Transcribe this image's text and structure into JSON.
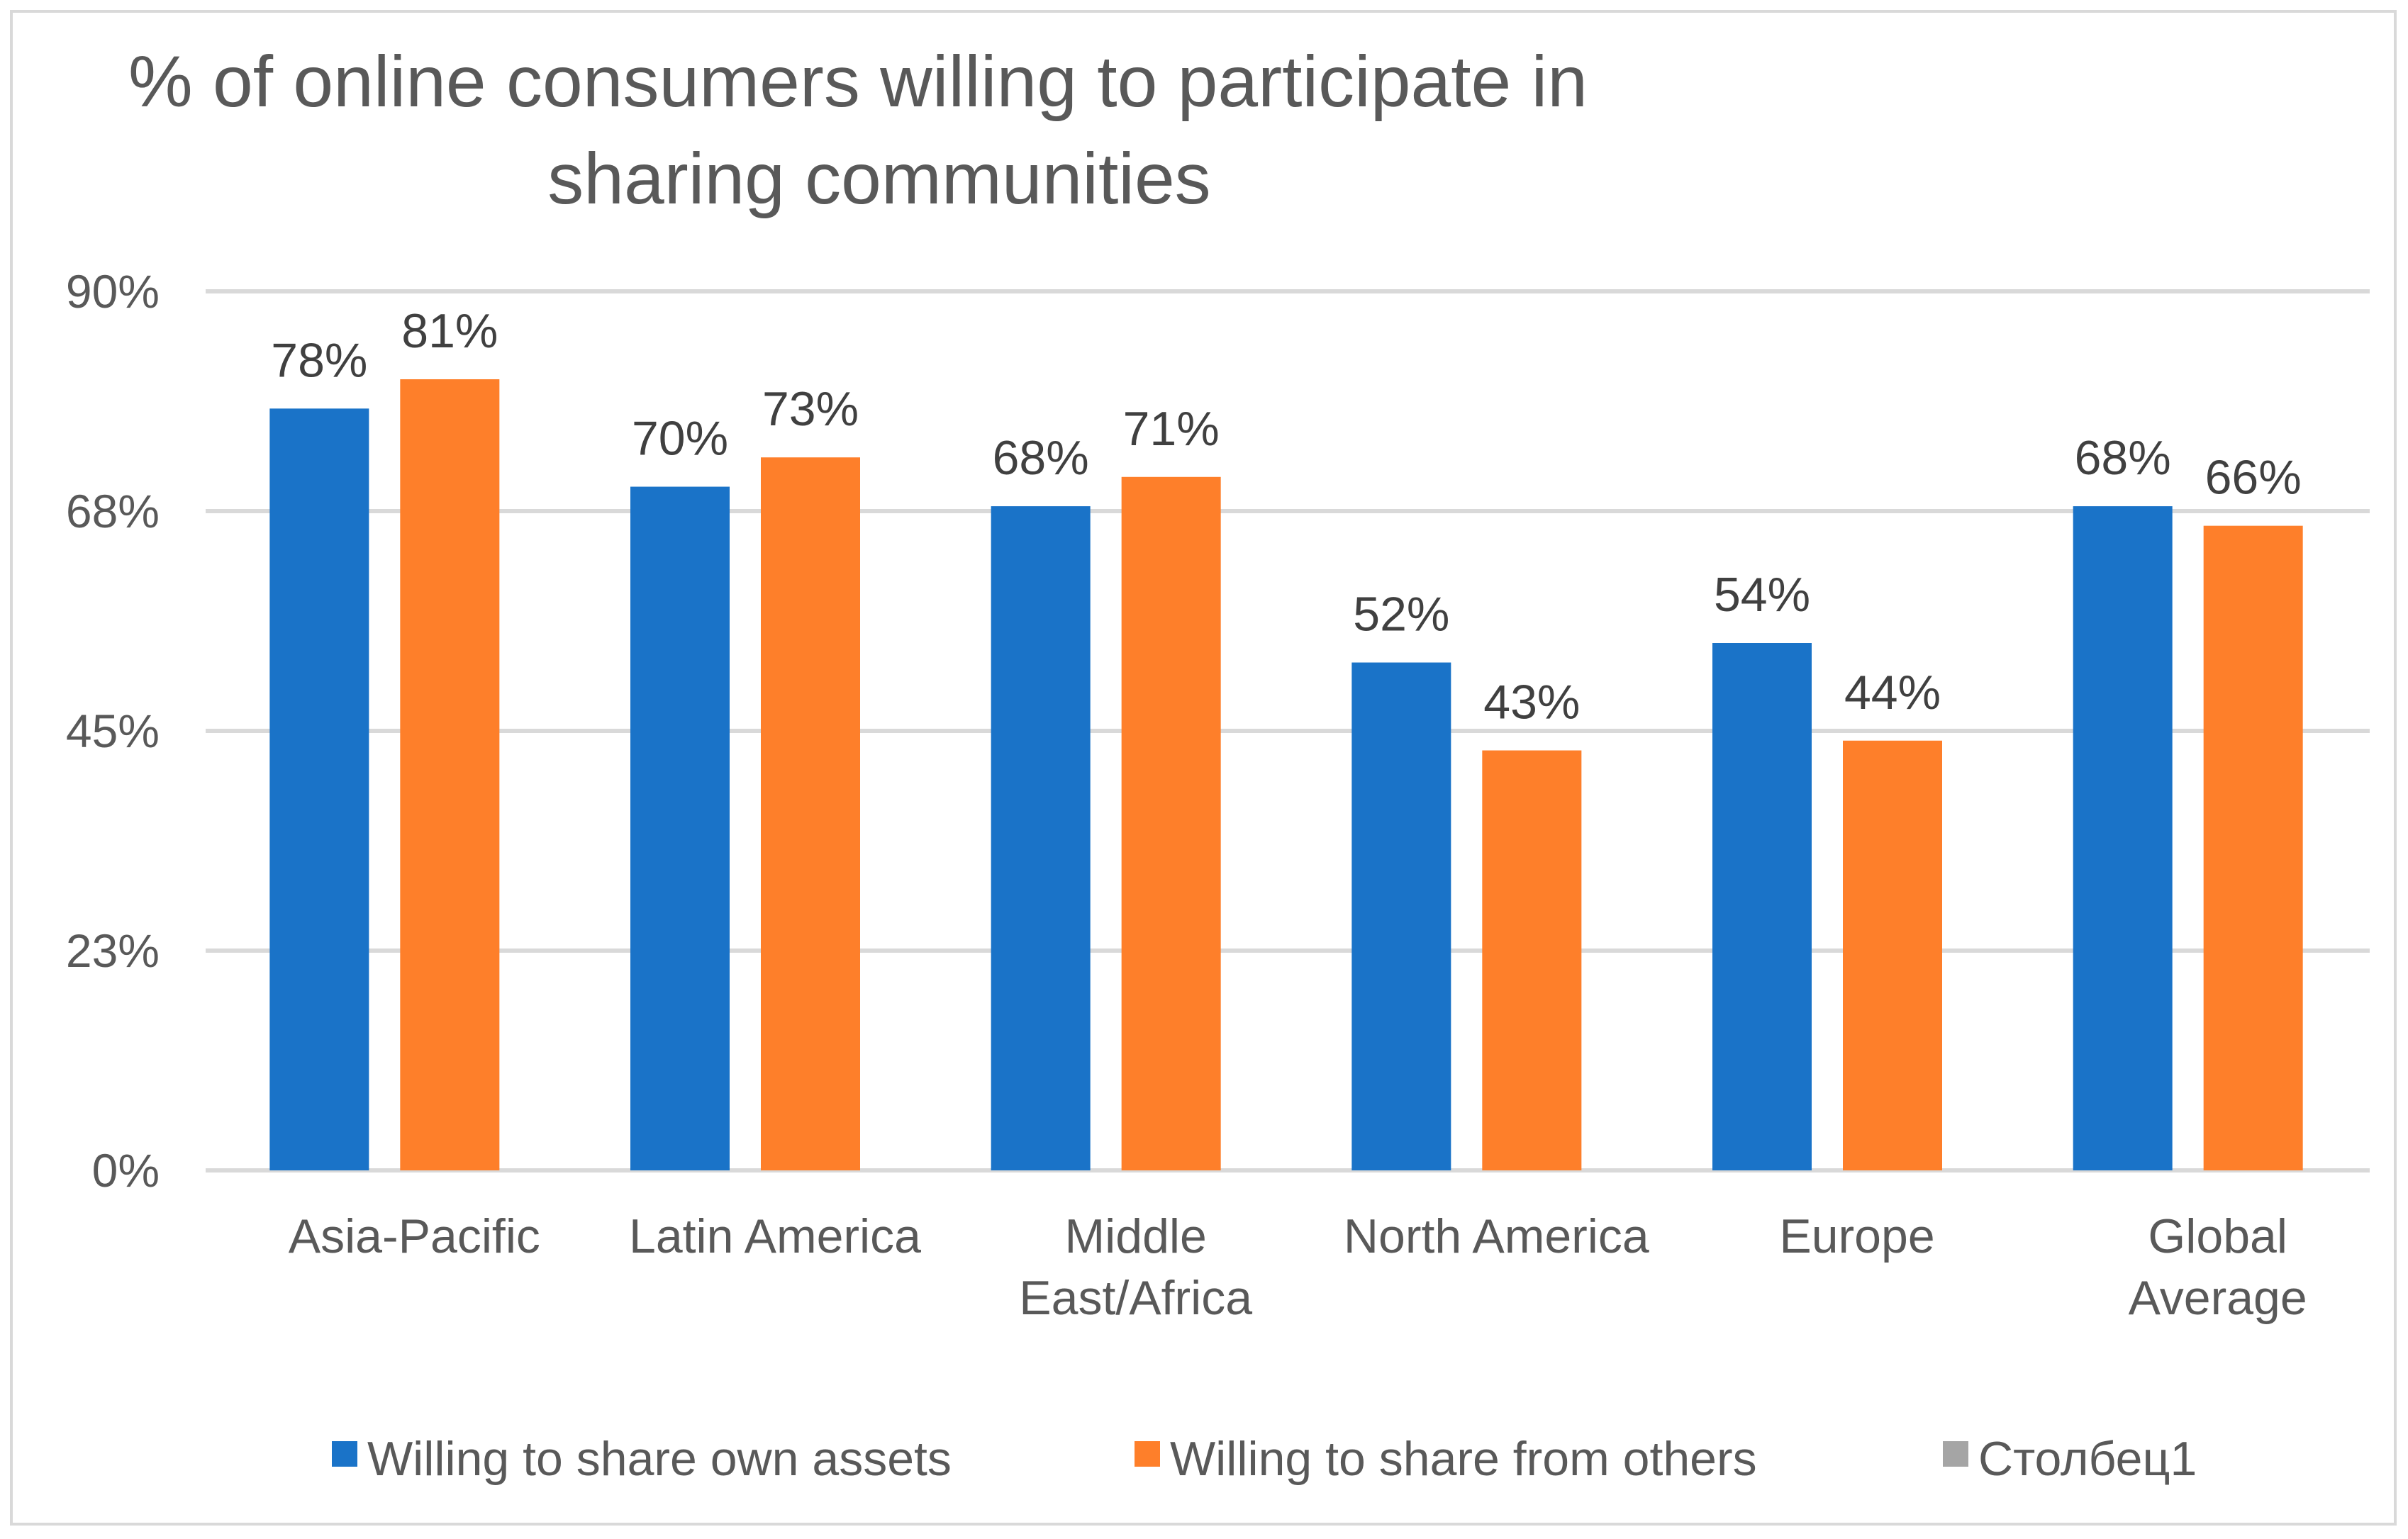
{
  "chart_data": {
    "type": "bar",
    "title_lines": [
      "% of online consumers willing to participate in",
      "sharing communities"
    ],
    "categories": [
      "Asia-Pacific",
      "Latin America",
      "Middle East/Africa",
      "North America",
      "Europe",
      "Global Average"
    ],
    "category_lines": [
      [
        "Asia-Pacific"
      ],
      [
        "Latin America"
      ],
      [
        "Middle",
        "East/Africa"
      ],
      [
        "North America"
      ],
      [
        "Europe"
      ],
      [
        "Global",
        "Average"
      ]
    ],
    "series": [
      {
        "name": "Willing to share own assets",
        "color": "#1a73c8",
        "values": [
          78,
          70,
          68,
          52,
          54,
          68
        ],
        "labels": [
          "78%",
          "70%",
          "68%",
          "52%",
          "54%",
          "68%"
        ]
      },
      {
        "name": "Willing to share from others",
        "color": "#fe7f2a",
        "values": [
          81,
          73,
          71,
          43,
          44,
          66
        ],
        "labels": [
          "81%",
          "73%",
          "71%",
          "43%",
          "44%",
          "66%"
        ]
      }
    ],
    "legend_extra": {
      "name": "Столбец1",
      "color": "#a5a5a5"
    },
    "ylim": [
      0,
      90
    ],
    "yticks": [
      0,
      22.5,
      45,
      67.5,
      90
    ],
    "ytick_labels": [
      "0%",
      "23%",
      "45%",
      "68%",
      "90%"
    ],
    "grid": true,
    "legend_position": "bottom"
  }
}
